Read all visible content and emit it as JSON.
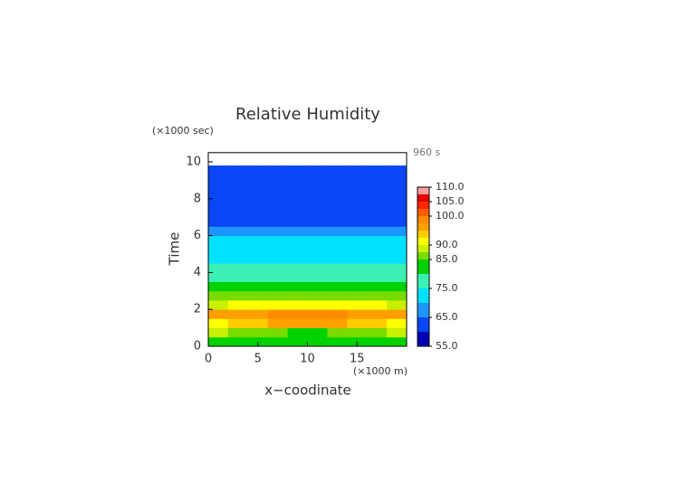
{
  "chart_data": {
    "type": "contour",
    "title": "Relative Humidity",
    "y_unit": "(×1000 sec)",
    "x_unit": "(×1000 m)",
    "time_label": "960 s",
    "x_label": "x−coodinate",
    "y_label": "Time",
    "xlim": [
      0,
      20
    ],
    "ylim": [
      0,
      10.5
    ],
    "xticks": [
      0,
      5,
      10,
      15
    ],
    "yticks": [
      0,
      2,
      4,
      6,
      8,
      10
    ],
    "x_edges": [
      0,
      2,
      4,
      6,
      8,
      10,
      12,
      14,
      16,
      18,
      20
    ],
    "y_edges": [
      0,
      0.5,
      1,
      1.5,
      2,
      2.5,
      3,
      3.5,
      4,
      4.5,
      5,
      5.5,
      6,
      6.5,
      7,
      7.5,
      8,
      8.5,
      9,
      9.5,
      9.8
    ],
    "z": [
      [
        83,
        83,
        83,
        82,
        82,
        82,
        82,
        83,
        83,
        83
      ],
      [
        88,
        87,
        86,
        85,
        84,
        84,
        85,
        86,
        87,
        88
      ],
      [
        92,
        93,
        94,
        95,
        96,
        96,
        95,
        94,
        93,
        92
      ],
      [
        95,
        96,
        97,
        98,
        98,
        98,
        98,
        97,
        96,
        95
      ],
      [
        89,
        90,
        90,
        91,
        91,
        91,
        91,
        90,
        90,
        89
      ],
      [
        85,
        85,
        85,
        85,
        85,
        85,
        85,
        85,
        85,
        85
      ],
      [
        83,
        83,
        83,
        83,
        83,
        83,
        83,
        83,
        83,
        83
      ],
      [
        79,
        79,
        79,
        79,
        79,
        79,
        79,
        79,
        79,
        79
      ],
      [
        76,
        76,
        76,
        76,
        76,
        76,
        76,
        76,
        76,
        76
      ],
      [
        74,
        73,
        73,
        72,
        72,
        72,
        72,
        73,
        73,
        74
      ],
      [
        72,
        72,
        72,
        72,
        72,
        72,
        72,
        72,
        72,
        72
      ],
      [
        71,
        71,
        71,
        71,
        71,
        71,
        71,
        71,
        71,
        71
      ],
      [
        67,
        67,
        67,
        67,
        67,
        67,
        67,
        67,
        67,
        67
      ],
      [
        64,
        64,
        64,
        64,
        64,
        64,
        64,
        64,
        64,
        64
      ],
      [
        63,
        63,
        63,
        63,
        63,
        63,
        63,
        63,
        63,
        63
      ],
      [
        63,
        63,
        63,
        63,
        63,
        63,
        63,
        63,
        63,
        63
      ],
      [
        62,
        62,
        62,
        62,
        62,
        62,
        62,
        62,
        62,
        62
      ],
      [
        62,
        62,
        62,
        62,
        62,
        62,
        62,
        62,
        62,
        62
      ],
      [
        62,
        62,
        62,
        62,
        62,
        62,
        62,
        62,
        62,
        62
      ],
      [
        62,
        62,
        62,
        62,
        62,
        62,
        62,
        62,
        62,
        62
      ]
    ],
    "levels": [
      55,
      60,
      65,
      70,
      75,
      80,
      85,
      87.5,
      90,
      92.5,
      95,
      97.5,
      100,
      102.5,
      105,
      107.5,
      110
    ],
    "colors": [
      "#0000b4",
      "#0a46f5",
      "#1e96ff",
      "#00e1ff",
      "#3cf0b4",
      "#00d200",
      "#78dc00",
      "#c8f000",
      "#ffff00",
      "#ffcc00",
      "#ffa000",
      "#ff8c00",
      "#ff5a00",
      "#ff2800",
      "#e60000",
      "#ffa0a0"
    ],
    "cbar_ticks": [
      {
        "value": 55,
        "label": "55.0"
      },
      {
        "value": 65,
        "label": "65.0"
      },
      {
        "value": 75,
        "label": "75.0"
      },
      {
        "value": 85,
        "label": "85.0"
      },
      {
        "value": 90,
        "label": "90.0"
      },
      {
        "value": 100,
        "label": "100.0"
      },
      {
        "value": 105,
        "label": "105.0"
      },
      {
        "value": 110,
        "label": "110.0"
      }
    ]
  }
}
